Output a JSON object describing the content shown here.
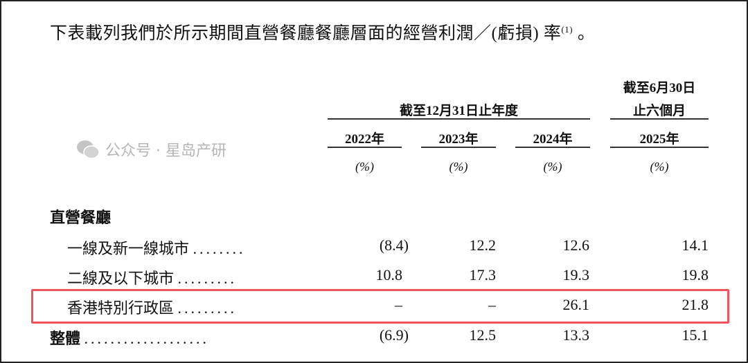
{
  "intro": {
    "text": "下表載列我們於所示期間直營餐廳餐廳層面的經營利潤／(虧損) 率",
    "footnote": "(1)",
    "end": "。"
  },
  "header": {
    "annual_group": "截至12月31日止年度",
    "half_group_line1": "截至6月30日",
    "half_group_line2": "止六個月",
    "years": [
      "2022年",
      "2023年",
      "2024年",
      "2025年"
    ],
    "unit": [
      "(%)",
      "(%)",
      "(%)",
      "(%)"
    ]
  },
  "section_title": "直營餐廳",
  "rows": [
    {
      "label": "一線及新一線城市",
      "dots": "........",
      "values": [
        "(8.4)",
        "12.2",
        "12.6",
        "14.1"
      ]
    },
    {
      "label": "二線及以下城市",
      "dots": ".........",
      "values": [
        "10.8",
        "17.3",
        "19.3",
        "19.8"
      ]
    },
    {
      "label": "香港特別行政區",
      "dots": ".........",
      "values": [
        "–",
        "–",
        "26.1",
        "21.8"
      ],
      "highlighted": true
    },
    {
      "label": "整體",
      "dots": "...................",
      "values": [
        "(6.9)",
        "12.5",
        "13.3",
        "15.1"
      ],
      "bold_label": true
    }
  ],
  "highlight_color": "#f0545a",
  "watermark": {
    "icon": "wechat-icon",
    "text": "公众号 · 星岛产研"
  }
}
